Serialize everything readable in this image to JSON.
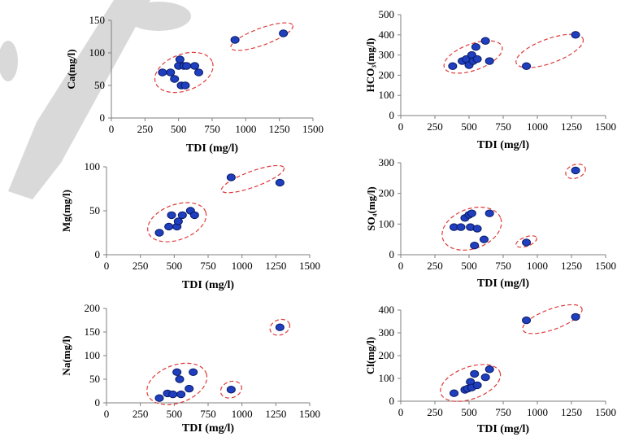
{
  "chart_data": [
    {
      "type": "scatter",
      "xlabel": "TDI (mg/l)",
      "ylabel": "Ca(mg/l)",
      "xlim": [
        0,
        1500
      ],
      "ylim": [
        0,
        150
      ],
      "xticks": [
        "0",
        "250",
        "500",
        "750",
        "1000",
        "1250",
        "1500"
      ],
      "yticks": [
        "0",
        "50",
        "100",
        "150"
      ],
      "points": [
        [
          380,
          70
        ],
        [
          440,
          70
        ],
        [
          470,
          60
        ],
        [
          500,
          80
        ],
        [
          510,
          90
        ],
        [
          520,
          50
        ],
        [
          540,
          80
        ],
        [
          550,
          50
        ],
        [
          560,
          80
        ],
        [
          620,
          80
        ],
        [
          650,
          70
        ],
        [
          920,
          120
        ],
        [
          1280,
          130
        ]
      ],
      "clusters": [
        {
          "cx": 540,
          "cy": 70,
          "rx": 225,
          "ry": 28
        },
        {
          "cx": 1120,
          "cy": 125,
          "rx": 245,
          "ry": 13
        }
      ]
    },
    {
      "type": "scatter",
      "xlabel": "TDI (mg/l)",
      "ylabel": "HCO₃(mg/l)",
      "xlim": [
        0,
        1500
      ],
      "ylim": [
        0,
        500
      ],
      "xticks": [
        "0",
        "250",
        "500",
        "750",
        "1000",
        "1250",
        "1500"
      ],
      "yticks": [
        "0",
        "100",
        "200",
        "300",
        "400",
        "500"
      ],
      "points": [
        [
          380,
          245
        ],
        [
          450,
          270
        ],
        [
          480,
          280
        ],
        [
          500,
          250
        ],
        [
          520,
          300
        ],
        [
          530,
          270
        ],
        [
          550,
          340
        ],
        [
          560,
          280
        ],
        [
          620,
          370
        ],
        [
          650,
          270
        ],
        [
          920,
          245
        ],
        [
          1280,
          400
        ]
      ],
      "clusters": [
        {
          "cx": 530,
          "cy": 290,
          "rx": 225,
          "ry": 65
        },
        {
          "cx": 1090,
          "cy": 320,
          "rx": 260,
          "ry": 60
        }
      ]
    },
    {
      "type": "scatter",
      "xlabel": "TDI (mg/l)",
      "ylabel": "Mg(mg/l)",
      "xlim": [
        0,
        1500
      ],
      "ylim": [
        0,
        100
      ],
      "xticks": [
        "0",
        "250",
        "500",
        "750",
        "1000",
        "1250",
        "1500"
      ],
      "yticks": [
        "0",
        "50",
        "100"
      ],
      "points": [
        [
          390,
          25
        ],
        [
          460,
          32
        ],
        [
          480,
          45
        ],
        [
          520,
          32
        ],
        [
          530,
          38
        ],
        [
          560,
          45
        ],
        [
          620,
          50
        ],
        [
          650,
          45
        ],
        [
          920,
          88
        ],
        [
          1280,
          82
        ]
      ],
      "clusters": [
        {
          "cx": 520,
          "cy": 37,
          "rx": 225,
          "ry": 20
        },
        {
          "cx": 1080,
          "cy": 86,
          "rx": 245,
          "ry": 9
        }
      ]
    },
    {
      "type": "scatter",
      "xlabel": "TDI (mg/l)",
      "ylabel": "SO₄(mg/l)",
      "xlim": [
        0,
        1500
      ],
      "ylim": [
        0,
        300
      ],
      "xticks": [
        "0",
        "250",
        "500",
        "750",
        "1000",
        "1250",
        "1500"
      ],
      "yticks": [
        "0",
        "100",
        "200",
        "300"
      ],
      "points": [
        [
          390,
          90
        ],
        [
          440,
          90
        ],
        [
          470,
          120
        ],
        [
          500,
          130
        ],
        [
          510,
          90
        ],
        [
          520,
          135
        ],
        [
          540,
          30
        ],
        [
          560,
          85
        ],
        [
          610,
          50
        ],
        [
          650,
          135
        ],
        [
          920,
          40
        ],
        [
          1280,
          275
        ]
      ],
      "clusters": [
        {
          "cx": 520,
          "cy": 85,
          "rx": 225,
          "ry": 65
        },
        {
          "cx": 920,
          "cy": 43,
          "rx": 80,
          "ry": 15
        },
        {
          "cx": 1280,
          "cy": 272,
          "rx": 75,
          "ry": 22
        }
      ]
    },
    {
      "type": "scatter",
      "xlabel": "TDI (mg/l)",
      "ylabel": "Na(mg/l)",
      "xlim": [
        0,
        1500
      ],
      "ylim": [
        0,
        200
      ],
      "xticks": [
        "0",
        "250",
        "500",
        "750",
        "1000",
        "1250",
        "1500"
      ],
      "yticks": [
        "0",
        "50",
        "100",
        "150",
        "200"
      ],
      "points": [
        [
          390,
          10
        ],
        [
          450,
          20
        ],
        [
          490,
          18
        ],
        [
          520,
          65
        ],
        [
          540,
          50
        ],
        [
          550,
          18
        ],
        [
          610,
          30
        ],
        [
          640,
          65
        ],
        [
          920,
          28
        ],
        [
          1280,
          160
        ]
      ],
      "clusters": [
        {
          "cx": 520,
          "cy": 40,
          "rx": 230,
          "ry": 40
        },
        {
          "cx": 920,
          "cy": 28,
          "rx": 80,
          "ry": 17
        },
        {
          "cx": 1280,
          "cy": 160,
          "rx": 75,
          "ry": 16
        }
      ]
    },
    {
      "type": "scatter",
      "xlabel": "TDI (mg/l)",
      "ylabel": "Cl(mg/l)",
      "xlim": [
        0,
        1500
      ],
      "ylim": [
        0,
        400
      ],
      "xticks": [
        "0",
        "250",
        "500",
        "750",
        "1000",
        "1250",
        "1500"
      ],
      "yticks": [
        "0",
        "100",
        "200",
        "300",
        "400"
      ],
      "points": [
        [
          390,
          35
        ],
        [
          470,
          50
        ],
        [
          490,
          55
        ],
        [
          510,
          85
        ],
        [
          520,
          60
        ],
        [
          540,
          120
        ],
        [
          560,
          70
        ],
        [
          620,
          105
        ],
        [
          650,
          140
        ],
        [
          920,
          355
        ],
        [
          1280,
          370
        ]
      ],
      "clusters": [
        {
          "cx": 510,
          "cy": 80,
          "rx": 230,
          "ry": 70
        },
        {
          "cx": 1110,
          "cy": 360,
          "rx": 230,
          "ry": 45
        }
      ]
    }
  ]
}
